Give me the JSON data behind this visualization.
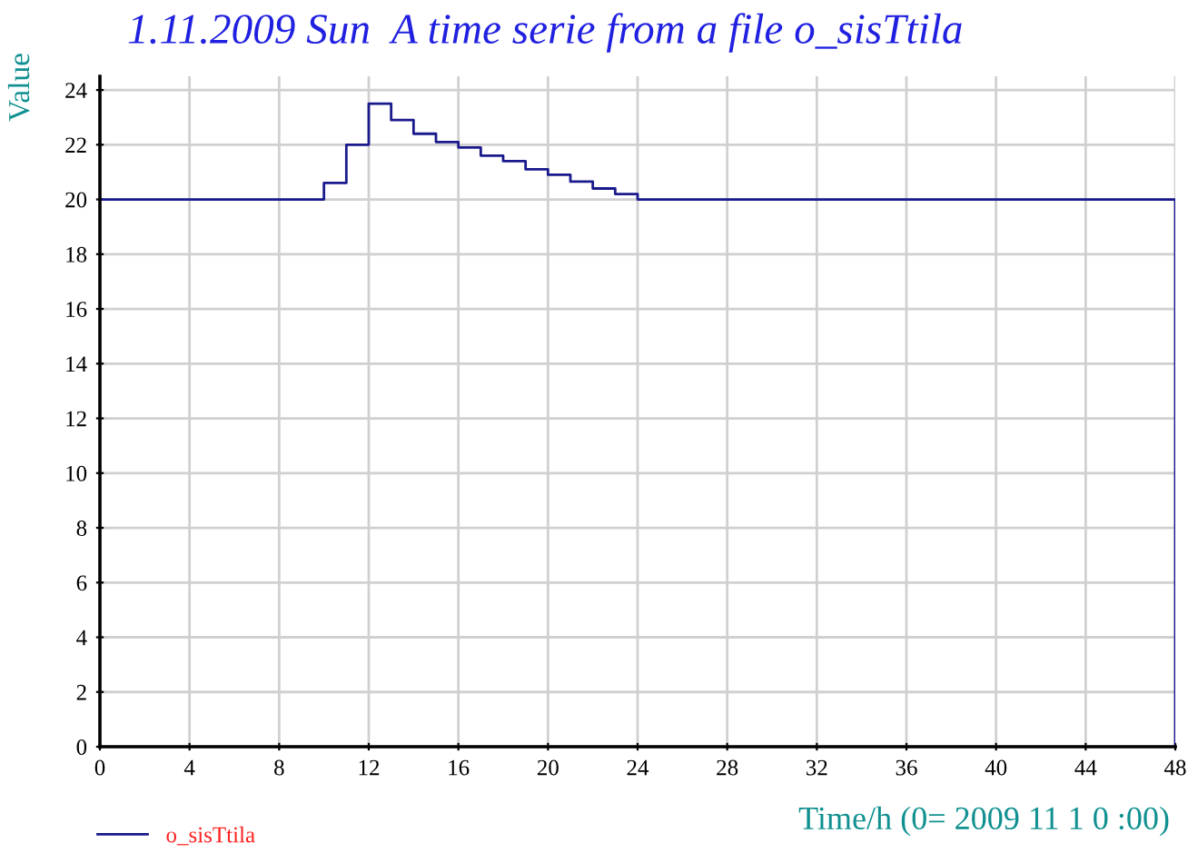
{
  "chart_data": {
    "type": "step",
    "title": "1.11.2009 Sun  A time serie from a file o_sisTtila",
    "xlabel": "Time/h (0= 2009 11 1 0 :00)",
    "ylabel": "Value",
    "x": [
      0,
      10,
      11,
      12,
      13,
      14,
      15,
      16,
      17,
      18,
      19,
      20,
      21,
      22,
      23,
      24,
      48
    ],
    "series": [
      {
        "name": "o_sisTtila",
        "color": "#1a1a8c",
        "values": [
          20,
          20.6,
          22.0,
          23.5,
          22.9,
          22.4,
          22.1,
          21.9,
          21.6,
          21.4,
          21.1,
          20.9,
          20.65,
          20.4,
          20.2,
          20,
          0
        ]
      }
    ],
    "xlim": [
      0,
      48
    ],
    "ylim": [
      0,
      24.5
    ],
    "xticks": [
      0,
      4,
      8,
      12,
      16,
      20,
      24,
      28,
      32,
      36,
      40,
      44,
      48
    ],
    "yticks": [
      0,
      2,
      4,
      6,
      8,
      10,
      12,
      14,
      16,
      18,
      20,
      22,
      24
    ],
    "grid": true,
    "legend": "bottom left"
  }
}
